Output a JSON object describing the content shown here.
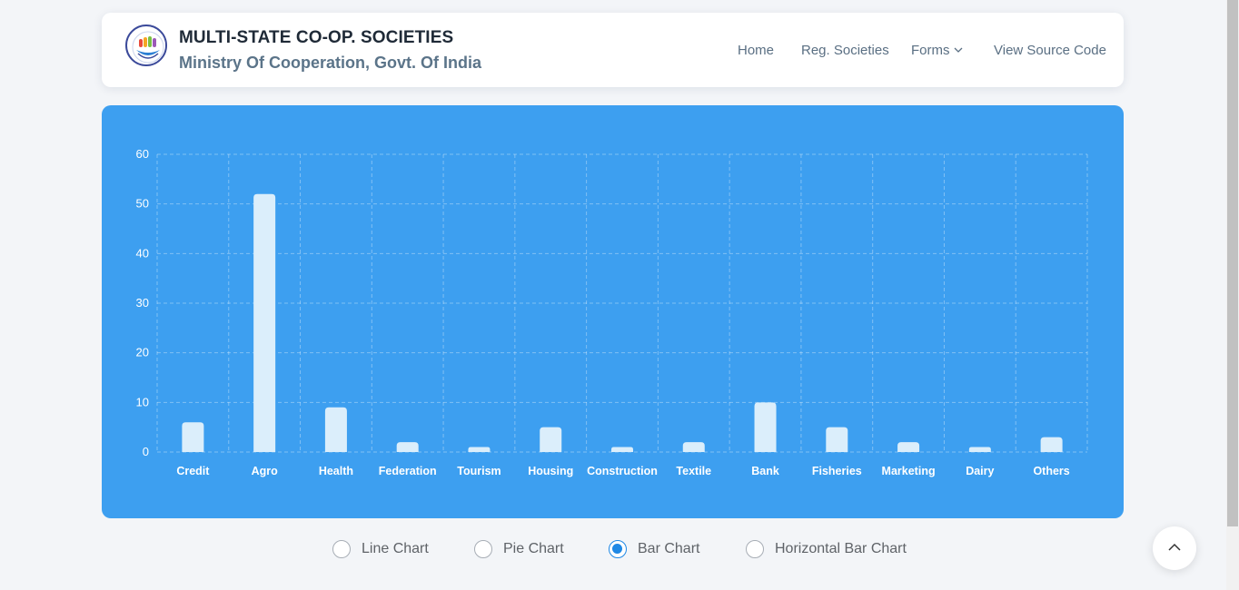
{
  "brand": {
    "title": "MULTI-STATE CO-OP. SOCIETIES",
    "subtitle": "Ministry Of Cooperation, Govt. Of India"
  },
  "nav": {
    "items": [
      {
        "label": "Home"
      },
      {
        "label": "Reg. Societies"
      },
      {
        "label": "Forms"
      },
      {
        "label": "View Source Code"
      }
    ]
  },
  "chart_data": {
    "type": "bar",
    "categories": [
      "Credit",
      "Agro",
      "Health",
      "Federation",
      "Tourism",
      "Housing",
      "Construction",
      "Textile",
      "Bank",
      "Fisheries",
      "Marketing",
      "Dairy",
      "Others"
    ],
    "values": [
      6,
      52,
      9,
      2,
      1,
      5,
      1,
      2,
      10,
      5,
      2,
      1,
      3
    ],
    "ylim": [
      0,
      60
    ],
    "yticks": [
      0,
      10,
      20,
      30,
      40,
      50,
      60
    ],
    "grid": true,
    "bar_color": "#dbeefb",
    "background": "#3d9ff0"
  },
  "chart_options": [
    {
      "label": "Line Chart",
      "checked": false
    },
    {
      "label": "Pie Chart",
      "checked": false
    },
    {
      "label": "Bar Chart",
      "checked": true
    },
    {
      "label": "Horizontal Bar Chart",
      "checked": false
    }
  ],
  "colors": {
    "accent": "#1e88e5",
    "chart_bg": "#3d9ff0"
  },
  "icons": {
    "logo": "cooperative-logo",
    "forms_dropdown": "chevron-down-icon",
    "scroll_top": "chevron-up-icon"
  }
}
